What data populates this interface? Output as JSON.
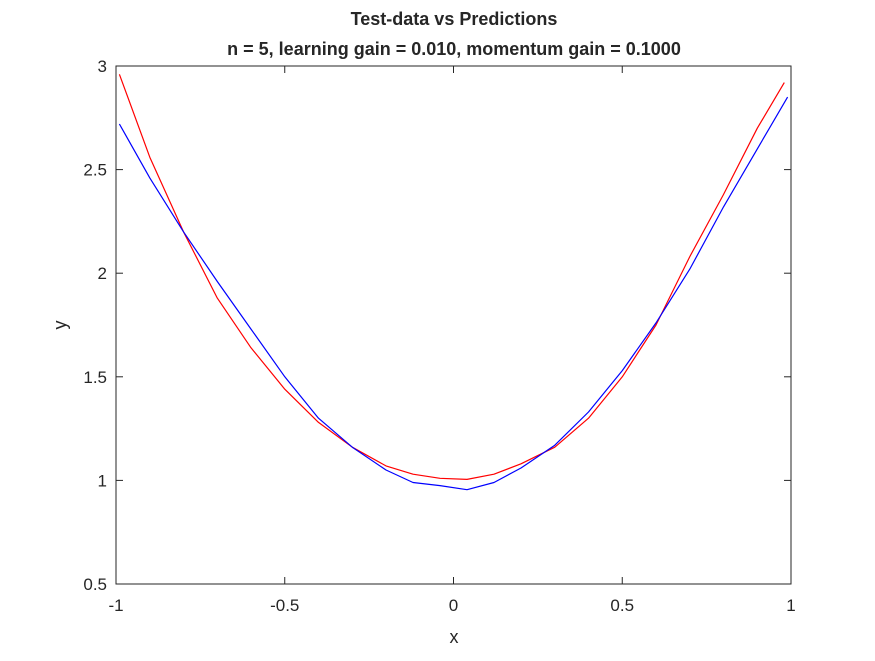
{
  "chart_data": {
    "type": "line",
    "title": "Test-data vs Predictions",
    "subtitle": "n = 5, learning gain = 0.010, momentum gain = 0.1000",
    "xlabel": "x",
    "ylabel": "y",
    "xlim": [
      -1,
      1
    ],
    "ylim": [
      0.5,
      3
    ],
    "xticks": [
      -1,
      -0.5,
      0,
      0.5,
      1
    ],
    "xtick_labels": [
      "-1",
      "-0.5",
      "0",
      "0.5",
      "1"
    ],
    "yticks": [
      0.5,
      1,
      1.5,
      2,
      2.5,
      3
    ],
    "ytick_labels": [
      "0.5",
      "1",
      "1.5",
      "2",
      "2.5",
      "3"
    ],
    "grid": false,
    "box": true,
    "series": [
      {
        "color": "#ff0000",
        "x": [
          -0.99,
          -0.9,
          -0.8,
          -0.7,
          -0.6,
          -0.5,
          -0.4,
          -0.3,
          -0.2,
          -0.12,
          -0.04,
          0.04,
          0.12,
          0.2,
          0.3,
          0.4,
          0.5,
          0.6,
          0.7,
          0.8,
          0.9,
          0.98
        ],
        "y": [
          2.96,
          2.56,
          2.2,
          1.88,
          1.64,
          1.44,
          1.28,
          1.16,
          1.07,
          1.03,
          1.01,
          1.005,
          1.03,
          1.08,
          1.16,
          1.3,
          1.5,
          1.75,
          2.08,
          2.38,
          2.7,
          2.92
        ]
      },
      {
        "color": "#0000ff",
        "x": [
          -0.99,
          -0.9,
          -0.8,
          -0.7,
          -0.6,
          -0.5,
          -0.4,
          -0.3,
          -0.2,
          -0.12,
          -0.04,
          0.04,
          0.12,
          0.2,
          0.3,
          0.4,
          0.5,
          0.6,
          0.7,
          0.8,
          0.9,
          0.99
        ],
        "y": [
          2.72,
          2.46,
          2.2,
          1.96,
          1.73,
          1.5,
          1.3,
          1.16,
          1.05,
          0.99,
          0.975,
          0.955,
          0.99,
          1.06,
          1.17,
          1.33,
          1.53,
          1.76,
          2.02,
          2.32,
          2.6,
          2.85
        ]
      }
    ]
  }
}
